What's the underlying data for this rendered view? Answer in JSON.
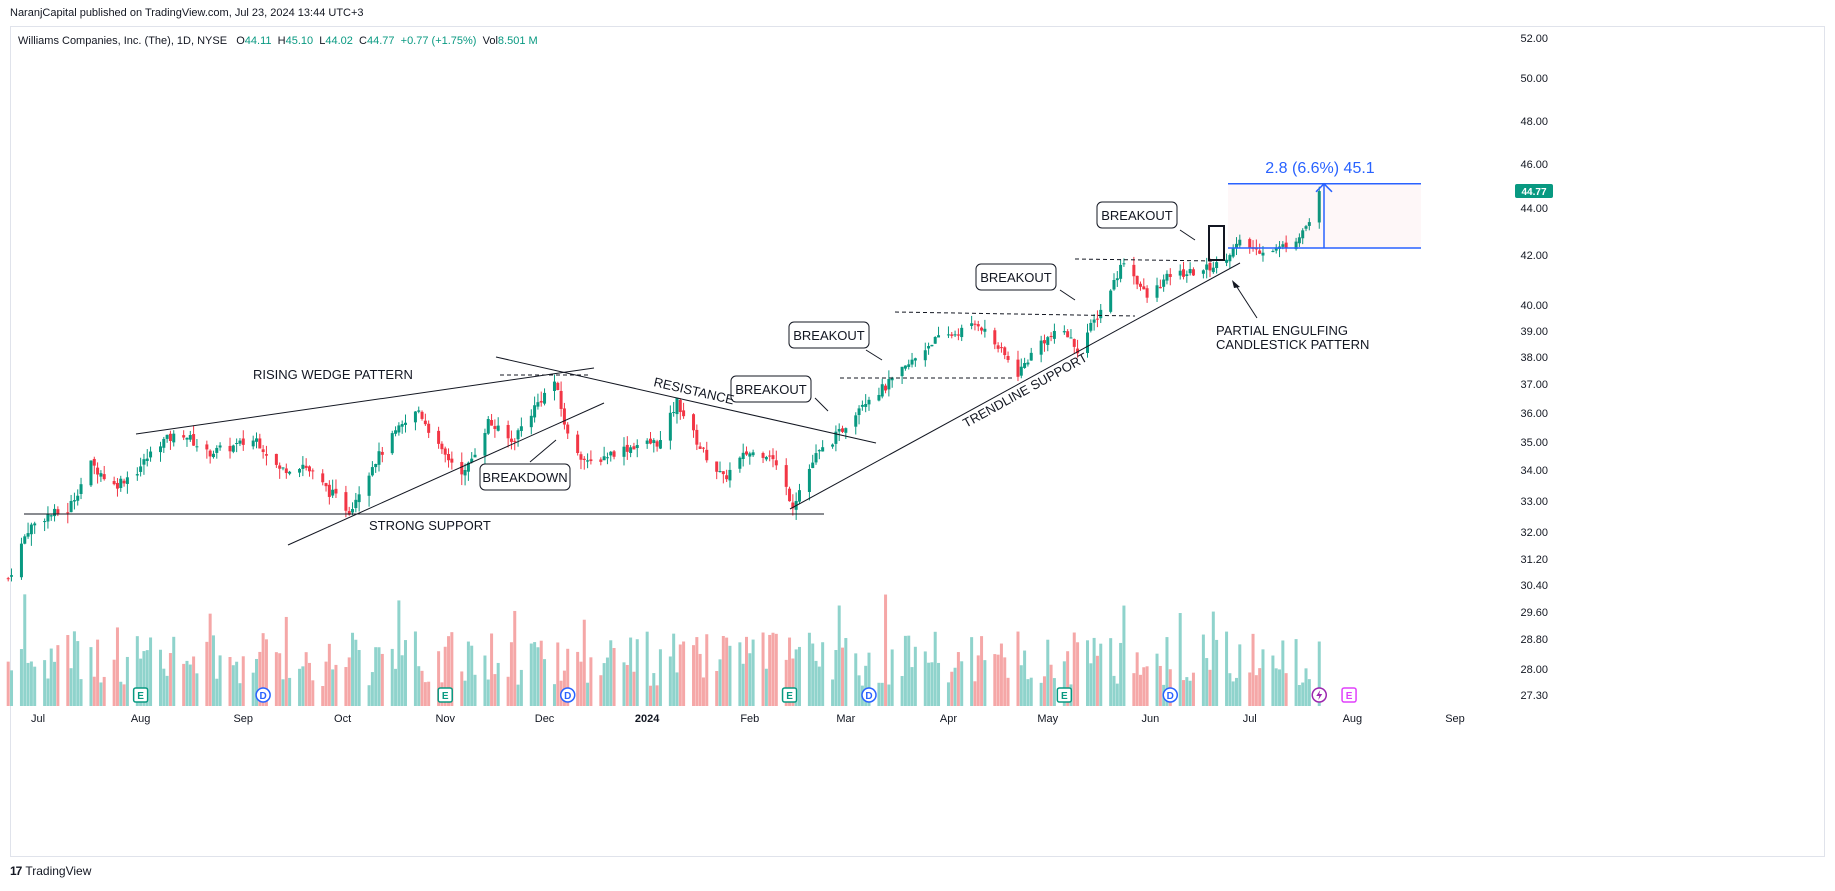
{
  "header": {
    "published": "NaranjCapital published on TradingView.com, Jul 23, 2024 13:44 UTC+3",
    "symbol": "Williams Companies, Inc. (The), 1D, NYSE",
    "o_label": "O",
    "open": "44.11",
    "h_label": "H",
    "high": "45.10",
    "l_label": "L",
    "low": "44.02",
    "c_label": "C",
    "close": "44.77",
    "change": "+0.77 (+1.75%)",
    "vol_label": "Vol",
    "volume": "8.501 M"
  },
  "footer": {
    "brand": "TradingView",
    "logo": "17"
  },
  "colors": {
    "up": "#089981",
    "down": "#f23645",
    "vol_up": "#8fd3cc",
    "vol_down": "#f5a7a7",
    "measure": "#2962ff",
    "last_price_bg": "#089981"
  },
  "chart_data": {
    "type": "candlestick",
    "y_ticks": [
      "52.00",
      "50.00",
      "48.00",
      "46.00",
      "44.00",
      "42.00",
      "40.00",
      "39.00",
      "38.00",
      "37.00",
      "36.00",
      "35.00",
      "34.00",
      "33.00",
      "32.00",
      "31.20",
      "30.40",
      "29.60",
      "28.80",
      "28.00",
      "27.30"
    ],
    "y_tick_values": [
      52,
      50,
      48,
      46,
      44,
      42,
      40,
      39,
      38,
      37,
      36,
      35,
      34,
      33,
      32,
      31.2,
      30.4,
      29.6,
      28.8,
      28,
      27.3
    ],
    "x_ticks": [
      {
        "label": "Jul",
        "date": "2023-07-01",
        "bold": false
      },
      {
        "label": "Aug",
        "date": "2023-08-01",
        "bold": false
      },
      {
        "label": "Sep",
        "date": "2023-09-01",
        "bold": false
      },
      {
        "label": "Oct",
        "date": "2023-10-01",
        "bold": false
      },
      {
        "label": "Nov",
        "date": "2023-11-01",
        "bold": false
      },
      {
        "label": "Dec",
        "date": "2023-12-01",
        "bold": false
      },
      {
        "label": "2024",
        "date": "2024-01-01",
        "bold": true
      },
      {
        "label": "Feb",
        "date": "2024-02-01",
        "bold": false
      },
      {
        "label": "Mar",
        "date": "2024-03-01",
        "bold": false
      },
      {
        "label": "Apr",
        "date": "2024-04-01",
        "bold": false
      },
      {
        "label": "May",
        "date": "2024-05-01",
        "bold": false
      },
      {
        "label": "Jun",
        "date": "2024-06-01",
        "bold": false
      },
      {
        "label": "Jul",
        "date": "2024-07-01",
        "bold": false
      },
      {
        "label": "Aug",
        "date": "2024-08-01",
        "bold": false
      },
      {
        "label": "Sep",
        "date": "2024-09-01",
        "bold": false
      }
    ],
    "last_price": "44.77",
    "price_path": [
      [
        "2023-06-22",
        30.6
      ],
      [
        "2023-06-26",
        31.6
      ],
      [
        "2023-06-28",
        32.1
      ],
      [
        "2023-07-03",
        32.5
      ],
      [
        "2023-07-10",
        32.7
      ],
      [
        "2023-07-17",
        34.2
      ],
      [
        "2023-07-24",
        33.5
      ],
      [
        "2023-07-31",
        34.0
      ],
      [
        "2023-08-07",
        35.0
      ],
      [
        "2023-08-14",
        35.3
      ],
      [
        "2023-08-21",
        34.6
      ],
      [
        "2023-08-28",
        34.8
      ],
      [
        "2023-09-05",
        35.1
      ],
      [
        "2023-09-12",
        34.0
      ],
      [
        "2023-09-19",
        34.2
      ],
      [
        "2023-09-26",
        33.4
      ],
      [
        "2023-10-03",
        32.7
      ],
      [
        "2023-10-10",
        34.2
      ],
      [
        "2023-10-17",
        35.3
      ],
      [
        "2023-10-24",
        36.1
      ],
      [
        "2023-10-31",
        34.6
      ],
      [
        "2023-11-07",
        33.9
      ],
      [
        "2023-11-14",
        35.7
      ],
      [
        "2023-11-21",
        35.0
      ],
      [
        "2023-11-28",
        36.2
      ],
      [
        "2023-12-04",
        37.1
      ],
      [
        "2023-12-08",
        35.2
      ],
      [
        "2023-12-14",
        34.2
      ],
      [
        "2023-12-21",
        34.6
      ],
      [
        "2023-12-29",
        34.9
      ],
      [
        "2024-01-05",
        35.0
      ],
      [
        "2024-01-10",
        36.4
      ],
      [
        "2024-01-17",
        34.8
      ],
      [
        "2024-01-24",
        33.7
      ],
      [
        "2024-01-31",
        34.6
      ],
      [
        "2024-02-07",
        34.6
      ],
      [
        "2024-02-14",
        32.9
      ],
      [
        "2024-02-21",
        34.5
      ],
      [
        "2024-02-28",
        35.3
      ],
      [
        "2024-03-06",
        36.4
      ],
      [
        "2024-03-13",
        36.9
      ],
      [
        "2024-03-20",
        37.7
      ],
      [
        "2024-03-27",
        38.6
      ],
      [
        "2024-04-03",
        38.9
      ],
      [
        "2024-04-10",
        39.3
      ],
      [
        "2024-04-17",
        38.2
      ],
      [
        "2024-04-22",
        37.4
      ],
      [
        "2024-04-29",
        38.6
      ],
      [
        "2024-05-06",
        39.0
      ],
      [
        "2024-05-10",
        38.3
      ],
      [
        "2024-05-17",
        39.8
      ],
      [
        "2024-05-24",
        41.8
      ],
      [
        "2024-05-31",
        40.3
      ],
      [
        "2024-06-07",
        41.2
      ],
      [
        "2024-06-14",
        41.3
      ],
      [
        "2024-06-21",
        41.6
      ],
      [
        "2024-06-28",
        42.5
      ],
      [
        "2024-07-03",
        42.2
      ],
      [
        "2024-07-10",
        42.3
      ],
      [
        "2024-07-15",
        42.7
      ],
      [
        "2024-07-19",
        43.4
      ],
      [
        "2024-07-22",
        44.77
      ]
    ],
    "measure": {
      "from": 42.3,
      "to": 45.1,
      "label": "2.8 (6.6%) 45.1"
    },
    "annotations": {
      "rising_wedge": "RISING WEDGE PATTERN",
      "strong_support": "STRONG SUPPORT",
      "breakdown": "BREAKDOWN",
      "resistance": "RESISTANCE",
      "breakout1": "BREAKOUT",
      "breakout2": "BREAKOUT",
      "breakout3": "BREAKOUT",
      "breakout4": "BREAKOUT",
      "trendline_support": "TRENDLINE SUPPORT",
      "partial_engulfing_1": "PARTIAL ENGULFING",
      "partial_engulfing_2": "CANDLESTICK PATTERN"
    },
    "events": [
      {
        "type": "E",
        "date": "2023-08-01"
      },
      {
        "type": "D",
        "date": "2023-09-07"
      },
      {
        "type": "E",
        "date": "2023-11-01"
      },
      {
        "type": "D",
        "date": "2023-12-08"
      },
      {
        "type": "E",
        "date": "2024-02-13"
      },
      {
        "type": "D",
        "date": "2024-03-08"
      },
      {
        "type": "E",
        "date": "2024-05-06"
      },
      {
        "type": "D",
        "date": "2024-06-07"
      },
      {
        "type": "split",
        "date": "2024-07-22"
      },
      {
        "type": "E",
        "date": "2024-07-31"
      }
    ]
  }
}
